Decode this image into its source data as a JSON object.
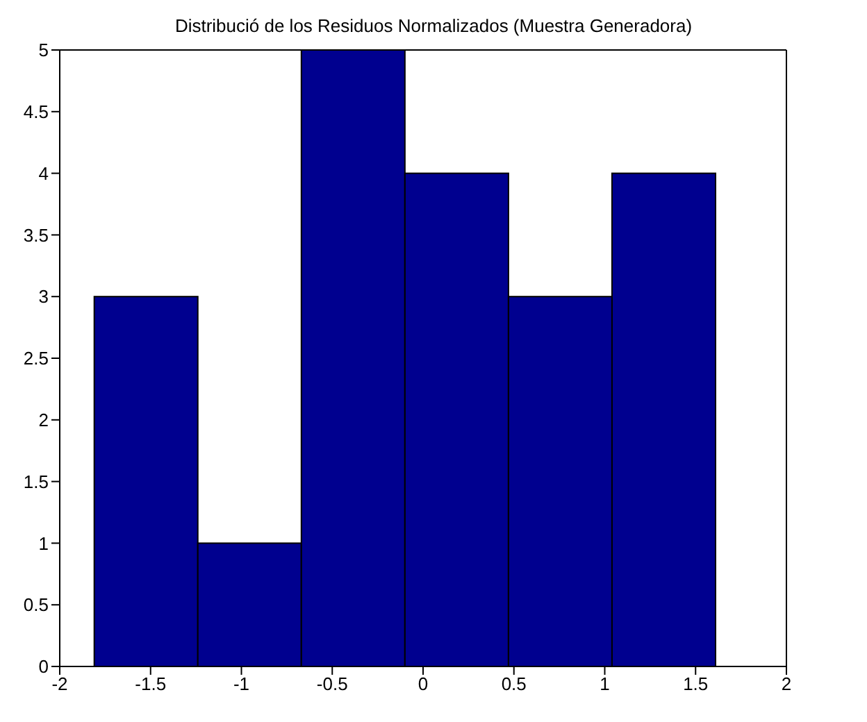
{
  "chart_data": {
    "type": "histogram",
    "title": "Distribució de los Residuos Normalizados (Muestra Generadora)",
    "bins": [
      -1.81,
      -1.24,
      -0.67,
      -0.1,
      0.47,
      1.04,
      1.61
    ],
    "values": [
      3,
      1,
      5,
      4,
      3,
      4
    ],
    "color": "#00008f",
    "xlim": [
      -2,
      2
    ],
    "xticks": [
      -2,
      -1.5,
      -1,
      -0.5,
      0,
      0.5,
      1,
      1.5,
      2
    ],
    "ylim": [
      0,
      5
    ],
    "yticks": [
      0,
      0.5,
      1,
      1.5,
      2,
      2.5,
      3,
      3.5,
      4,
      4.5,
      5
    ],
    "grid": false
  }
}
